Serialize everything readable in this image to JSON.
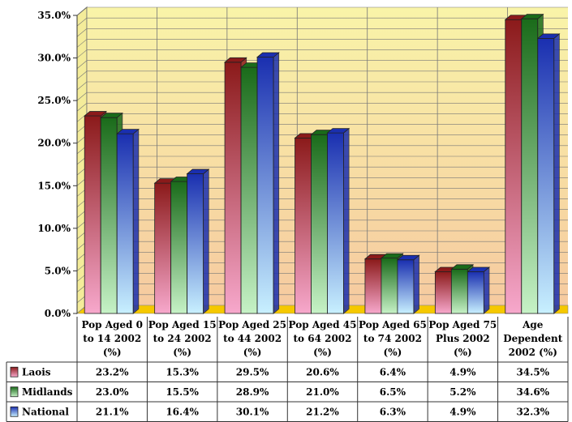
{
  "chart_data": {
    "type": "bar",
    "categories": [
      [
        "Pop  Aged 0",
        "to 14 2002",
        "(%)"
      ],
      [
        "Pop Aged 15",
        "to 24 2002",
        "(%)"
      ],
      [
        "Pop  Aged 25",
        "to 44 2002",
        "(%)"
      ],
      [
        "Pop  Aged 45",
        "to 64 2002",
        "(%)"
      ],
      [
        "Pop  Aged 65",
        "to 74 2002",
        "(%)"
      ],
      [
        "Pop  Aged 75",
        "Plus 2002",
        "(%)"
      ],
      [
        "Age",
        "Dependent",
        "2002 (%)"
      ]
    ],
    "series": [
      {
        "name": "Laois",
        "values": [
          23.2,
          15.3,
          29.5,
          20.6,
          6.4,
          4.9,
          34.5
        ],
        "labels": [
          "23.2%",
          "15.3%",
          "29.5%",
          "20.6%",
          "6.4%",
          "4.9%",
          "34.5%"
        ]
      },
      {
        "name": "Midlands",
        "values": [
          23.0,
          15.5,
          28.9,
          21.0,
          6.5,
          5.2,
          34.6
        ],
        "labels": [
          "23.0%",
          "15.5%",
          "28.9%",
          "21.0%",
          "6.5%",
          "5.2%",
          "34.6%"
        ]
      },
      {
        "name": "National",
        "values": [
          21.1,
          16.4,
          30.1,
          21.2,
          6.3,
          4.9,
          32.3
        ],
        "labels": [
          "21.1%",
          "16.4%",
          "30.1%",
          "21.2%",
          "6.3%",
          "4.9%",
          "32.3%"
        ]
      }
    ],
    "yticks": [
      "0.0%",
      "5.0%",
      "10.0%",
      "15.0%",
      "20.0%",
      "25.0%",
      "30.0%",
      "35.0%"
    ],
    "ylim": [
      0,
      35
    ],
    "grid": true,
    "legend": "data-table-left",
    "colors": {
      "Laois": {
        "dark": "#8b1a1a",
        "light": "#f7a8cc"
      },
      "Midlands": {
        "dark": "#1a6b1a",
        "light": "#c6f2c6"
      },
      "National": {
        "dark": "#1a2fb0",
        "light": "#c8f0ff"
      },
      "wall_top": "#f9f4a8",
      "wall_bottom": "#f6caa0",
      "floor": "#f5c800"
    }
  }
}
